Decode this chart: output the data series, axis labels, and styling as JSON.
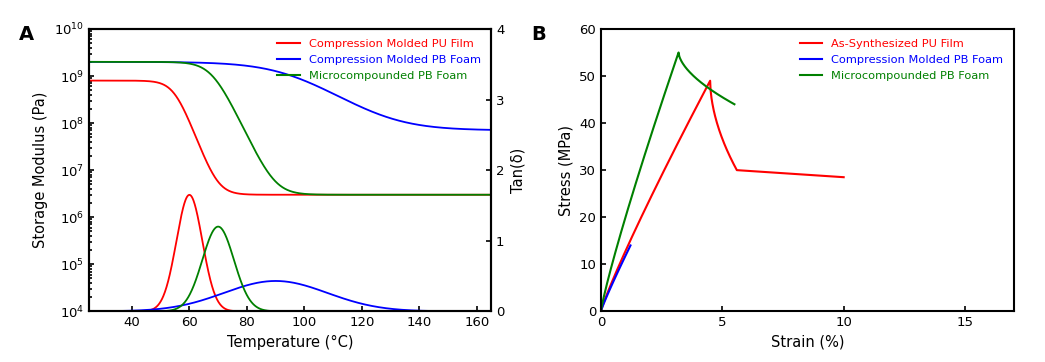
{
  "panel_A": {
    "title": "A",
    "xlabel": "Temperature (°C)",
    "ylabel_left": "Storage Modulus (Pa)",
    "ylabel_right": "Tan(δ)",
    "xlim": [
      25,
      165
    ],
    "xticks": [
      40,
      60,
      80,
      100,
      120,
      140,
      160
    ],
    "ylim_log": [
      10000.0,
      10000000000.0
    ],
    "ylim_right": [
      0,
      4
    ],
    "yticks_right": [
      0,
      1,
      2,
      3,
      4
    ],
    "legend": [
      "Compression Molded PU Film",
      "Compression Molded PB Foam",
      "Microcompounded PB Foam"
    ],
    "colors": [
      "red",
      "blue",
      "green"
    ]
  },
  "panel_B": {
    "title": "B",
    "xlabel": "Strain (%)",
    "ylabel": "Stress (MPa)",
    "xlim": [
      0,
      17
    ],
    "xticks": [
      0,
      5,
      10,
      15
    ],
    "ylim": [
      0,
      60
    ],
    "yticks": [
      0,
      10,
      20,
      30,
      40,
      50,
      60
    ],
    "legend": [
      "As-Synthesized PU Film",
      "Compression Molded PB Foam",
      "Microcompounded PB Foam"
    ],
    "colors": [
      "red",
      "blue",
      "green"
    ]
  }
}
